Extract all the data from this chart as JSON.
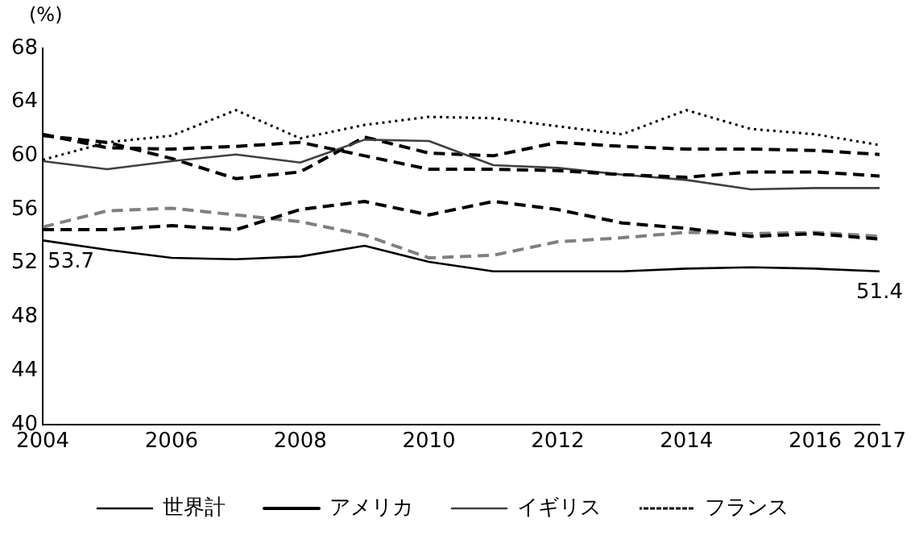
{
  "chart_data": {
    "type": "line",
    "ylabel": "(%)",
    "x": [
      2004,
      2005,
      2006,
      2007,
      2008,
      2009,
      2010,
      2011,
      2012,
      2013,
      2014,
      2015,
      2016,
      2017
    ],
    "xlim": [
      2004,
      2017
    ],
    "xticks": [
      2004,
      2006,
      2008,
      2010,
      2012,
      2014,
      2016,
      2017
    ],
    "ylim": [
      40,
      68
    ],
    "yticks": [
      40,
      44,
      48,
      52,
      56,
      60,
      64,
      68
    ],
    "grid": false,
    "legend": "bottom",
    "marker": "none",
    "series": [
      {
        "name": "世界計",
        "color": "#000000",
        "line_style": "solid",
        "values": [
          53.7,
          53.0,
          52.4,
          52.3,
          52.5,
          53.3,
          52.1,
          51.4,
          51.4,
          51.4,
          51.6,
          51.7,
          51.6,
          51.4
        ]
      },
      {
        "name": "アメリカ",
        "color": "#000000",
        "line_style": "dashed",
        "values": [
          61.6,
          60.6,
          60.5,
          60.7,
          61.0,
          60.0,
          59.0,
          59.0,
          58.9,
          58.6,
          58.4,
          58.8,
          58.8,
          58.5
        ]
      },
      {
        "name": "イギリス",
        "color": "#404040",
        "line_style": "solid",
        "values": [
          59.6,
          59.0,
          59.6,
          60.1,
          59.5,
          61.2,
          61.1,
          59.3,
          59.1,
          58.6,
          58.2,
          57.5,
          57.6,
          57.6
        ]
      },
      {
        "name": "フランス",
        "color": "#000000",
        "line_style": "dotted",
        "values": [
          59.7,
          61.0,
          61.5,
          63.4,
          61.3,
          62.3,
          62.9,
          62.8,
          62.2,
          61.6,
          63.4,
          62.0,
          61.6,
          60.8
        ]
      },
      {
        "color": "#000000",
        "line_style": "dashed",
        "values": [
          61.5,
          61.0,
          59.8,
          58.3,
          58.8,
          61.4,
          60.2,
          60.0,
          61.0,
          60.7,
          60.5,
          60.5,
          60.4,
          60.1
        ]
      },
      {
        "color": "#000000",
        "line_style": "dashed",
        "values": [
          54.5,
          54.5,
          54.8,
          54.5,
          56.0,
          56.6,
          55.6,
          56.6,
          56.0,
          55.0,
          54.6,
          54.0,
          54.2,
          53.8
        ]
      },
      {
        "color": "#808080",
        "line_style": "dashed",
        "values": [
          54.7,
          55.9,
          56.1,
          55.6,
          55.1,
          54.1,
          52.4,
          52.6,
          53.6,
          53.9,
          54.3,
          54.2,
          54.3,
          54.0
        ]
      }
    ],
    "annotations": [
      {
        "text": "53.7",
        "x": 2004,
        "y": 53.7
      },
      {
        "text": "51.4",
        "x": 2017,
        "y": 51.4
      }
    ]
  }
}
